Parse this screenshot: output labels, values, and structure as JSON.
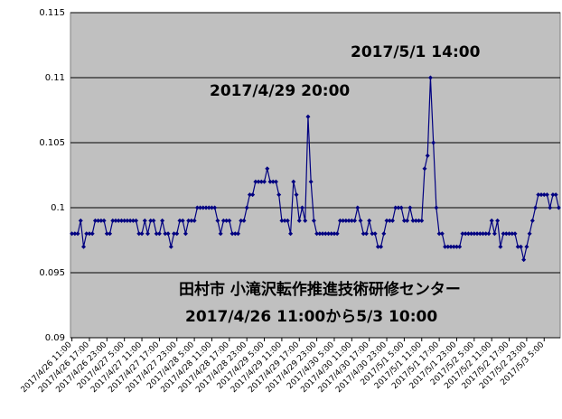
{
  "chart_data": {
    "type": "line",
    "color": "#000080",
    "grid": true,
    "ylim": [
      0.09,
      0.115
    ],
    "yticks": [
      0.09,
      0.095,
      0.1,
      0.105,
      0.11,
      0.115
    ],
    "annotations": [
      "2017/4/29 20:00",
      "2017/5/1 14:00",
      "田村市 小滝沢転作推進技術研修センター",
      "2017/4/26  11:00から5/3 10:00"
    ],
    "categories": [
      "2017/4/26 11:00",
      null,
      null,
      null,
      null,
      null,
      "2017/4/26 17:00",
      null,
      null,
      null,
      null,
      null,
      "2017/4/26 23:00",
      null,
      null,
      null,
      null,
      null,
      "2017/4/27 5:00",
      null,
      null,
      null,
      null,
      null,
      "2017/4/27 11:00",
      null,
      null,
      null,
      null,
      null,
      "2017/4/27 17:00",
      null,
      null,
      null,
      null,
      null,
      "2017/4/27 23:00",
      null,
      null,
      null,
      null,
      null,
      "2017/4/28 5:00",
      null,
      null,
      null,
      null,
      null,
      "2017/4/28 11:00",
      null,
      null,
      null,
      null,
      null,
      "2017/4/28 17:00",
      null,
      null,
      null,
      null,
      null,
      "2017/4/28 23:00",
      null,
      null,
      null,
      null,
      null,
      "2017/4/29 5:00",
      null,
      null,
      null,
      null,
      null,
      "2017/4/29 11:00",
      null,
      null,
      null,
      null,
      null,
      "2017/4/29 17:00",
      null,
      null,
      null,
      null,
      null,
      "2017/4/29 23:00",
      null,
      null,
      null,
      null,
      null,
      "2017/4/30 5:00",
      null,
      null,
      null,
      null,
      null,
      "2017/4/30 11:00",
      null,
      null,
      null,
      null,
      null,
      "2017/4/30 17:00",
      null,
      null,
      null,
      null,
      null,
      "2017/4/30 23:00",
      null,
      null,
      null,
      null,
      null,
      "2017/5/1 5:00",
      null,
      null,
      null,
      null,
      null,
      "2017/5/1 11:00",
      null,
      null,
      null,
      null,
      null,
      "2017/5/1 17:00",
      null,
      null,
      null,
      null,
      null,
      "2017/5/1 23:00",
      null,
      null,
      null,
      null,
      null,
      "2017/5/2 5:00",
      null,
      null,
      null,
      null,
      null,
      "2017/5/2 11:00",
      null,
      null,
      null,
      null,
      null,
      "2017/5/2 17:00",
      null,
      null,
      null,
      null,
      null,
      "2017/5/2 23:00",
      null,
      null,
      null,
      null,
      null,
      "2017/5/3 5:00",
      null,
      null,
      null,
      null,
      null
    ],
    "values": [
      0.098,
      0.098,
      0.098,
      0.099,
      0.097,
      0.098,
      0.098,
      0.098,
      0.099,
      0.099,
      0.099,
      0.099,
      0.098,
      0.098,
      0.099,
      0.099,
      0.099,
      0.099,
      0.099,
      0.099,
      0.099,
      0.099,
      0.099,
      0.098,
      0.098,
      0.099,
      0.098,
      0.099,
      0.099,
      0.098,
      0.098,
      0.099,
      0.098,
      0.098,
      0.097,
      0.098,
      0.098,
      0.099,
      0.099,
      0.098,
      0.099,
      0.099,
      0.099,
      0.1,
      0.1,
      0.1,
      0.1,
      0.1,
      0.1,
      0.1,
      0.099,
      0.098,
      0.099,
      0.099,
      0.099,
      0.098,
      0.098,
      0.098,
      0.099,
      0.099,
      0.1,
      0.101,
      0.101,
      0.102,
      0.102,
      0.102,
      0.102,
      0.103,
      0.102,
      0.102,
      0.102,
      0.101,
      0.099,
      0.099,
      0.099,
      0.098,
      0.102,
      0.101,
      0.099,
      0.1,
      0.099,
      0.107,
      0.102,
      0.099,
      0.098,
      0.098,
      0.098,
      0.098,
      0.098,
      0.098,
      0.098,
      0.098,
      0.099,
      0.099,
      0.099,
      0.099,
      0.099,
      0.099,
      0.1,
      0.099,
      0.098,
      0.098,
      0.099,
      0.098,
      0.098,
      0.097,
      0.097,
      0.098,
      0.099,
      0.099,
      0.099,
      0.1,
      0.1,
      0.1,
      0.099,
      0.099,
      0.1,
      0.099,
      0.099,
      0.099,
      0.099,
      0.103,
      0.104,
      0.11,
      0.105,
      0.1,
      0.098,
      0.098,
      0.097,
      0.097,
      0.097,
      0.097,
      0.097,
      0.097,
      0.098,
      0.098,
      0.098,
      0.098,
      0.098,
      0.098,
      0.098,
      0.098,
      0.098,
      0.098,
      0.099,
      0.098,
      0.099,
      0.097,
      0.098,
      0.098,
      0.098,
      0.098,
      0.098,
      0.097,
      0.097,
      0.096,
      0.097,
      0.098,
      0.099,
      0.1,
      0.101,
      0.101,
      0.101,
      0.101,
      0.1,
      0.101,
      0.101,
      0.1
    ]
  }
}
